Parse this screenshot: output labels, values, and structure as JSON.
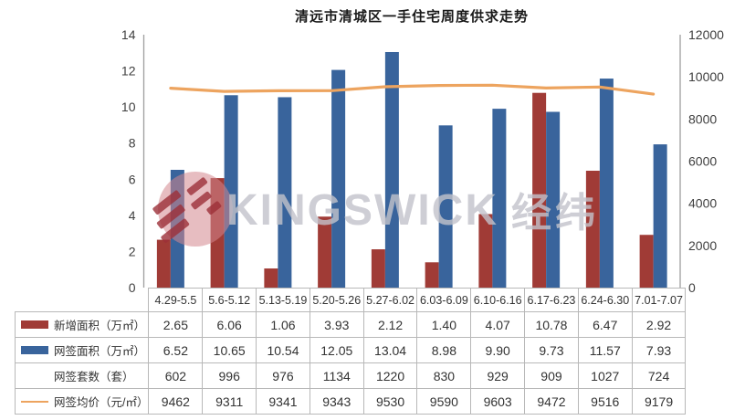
{
  "title": "清远市清城区一手住宅周度供求走势",
  "watermark": {
    "text_latin": "KINGSWICK",
    "text_cjk": "经纬",
    "logo": "kingswick-circle-stripes"
  },
  "colors": {
    "red_bar": "#A03B36",
    "blue_bar": "#39649C",
    "orange_line": "#EDA45F",
    "axis": "#9e9e9e",
    "table_border": "#b8b8b8",
    "watermark_gray": "#c3c3cb",
    "logo_pink": "#D4868E",
    "logo_stripe": "#9C2F38"
  },
  "chart_data": {
    "type": "bar",
    "title": "清远市清城区一手住宅周度供求走势",
    "categories": [
      "4.29-5.5",
      "5.6-5.12",
      "5.13-5.19",
      "5.20-5.26",
      "5.27-6.02",
      "6.03-6.09",
      "6.10-6.16",
      "6.17-6.23",
      "6.24-6.30",
      "7.01-7.07"
    ],
    "series": [
      {
        "id": "new_area",
        "name": "新增面积（万㎡）",
        "role": "bar",
        "axis": "left",
        "color": "#A03B36",
        "values": [
          2.65,
          6.06,
          1.06,
          3.93,
          2.12,
          1.4,
          4.07,
          10.78,
          6.47,
          2.92
        ]
      },
      {
        "id": "signed_area",
        "name": "网签面积（万㎡）",
        "role": "bar",
        "axis": "left",
        "color": "#39649C",
        "values": [
          6.52,
          10.65,
          10.54,
          12.05,
          13.04,
          8.98,
          9.9,
          9.73,
          11.57,
          7.93
        ]
      },
      {
        "id": "signed_units",
        "name": "网签套数（套）",
        "role": "table-only",
        "axis": "none",
        "values": [
          602,
          996,
          976,
          1134,
          1220,
          830,
          929,
          909,
          1027,
          724
        ]
      },
      {
        "id": "avg_price",
        "name": "网签均价（元/㎡）",
        "role": "line",
        "axis": "right",
        "color": "#EDA45F",
        "values": [
          9462,
          9311,
          9341,
          9343,
          9530,
          9590,
          9603,
          9472,
          9516,
          9179
        ]
      }
    ],
    "left_axis": {
      "min": 0,
      "max": 14,
      "ticks": [
        0,
        2,
        4,
        6,
        8,
        10,
        12,
        14
      ]
    },
    "right_axis": {
      "min": 0,
      "max": 12000,
      "ticks": [
        0,
        2000,
        4000,
        6000,
        8000,
        10000,
        12000
      ]
    },
    "grid": false,
    "legend_position": "table-left-column"
  },
  "table": {
    "rows": [
      {
        "label": "新增面积（万㎡）",
        "swatch": "bar-red",
        "cells": [
          "2.65",
          "6.06",
          "1.06",
          "3.93",
          "2.12",
          "1.40",
          "4.07",
          "10.78",
          "6.47",
          "2.92"
        ]
      },
      {
        "label": "网签面积（万㎡）",
        "swatch": "bar-blue",
        "cells": [
          "6.52",
          "10.65",
          "10.54",
          "12.05",
          "13.04",
          "8.98",
          "9.90",
          "9.73",
          "11.57",
          "7.93"
        ]
      },
      {
        "label": "网签套数（套）",
        "swatch": "none",
        "cells": [
          "602",
          "996",
          "976",
          "1134",
          "1220",
          "830",
          "929",
          "909",
          "1027",
          "724"
        ]
      },
      {
        "label": "网签均价（元/㎡）",
        "swatch": "line-orange",
        "cells": [
          "9462",
          "9311",
          "9341",
          "9343",
          "9530",
          "9590",
          "9603",
          "9472",
          "9516",
          "9179"
        ]
      }
    ]
  }
}
